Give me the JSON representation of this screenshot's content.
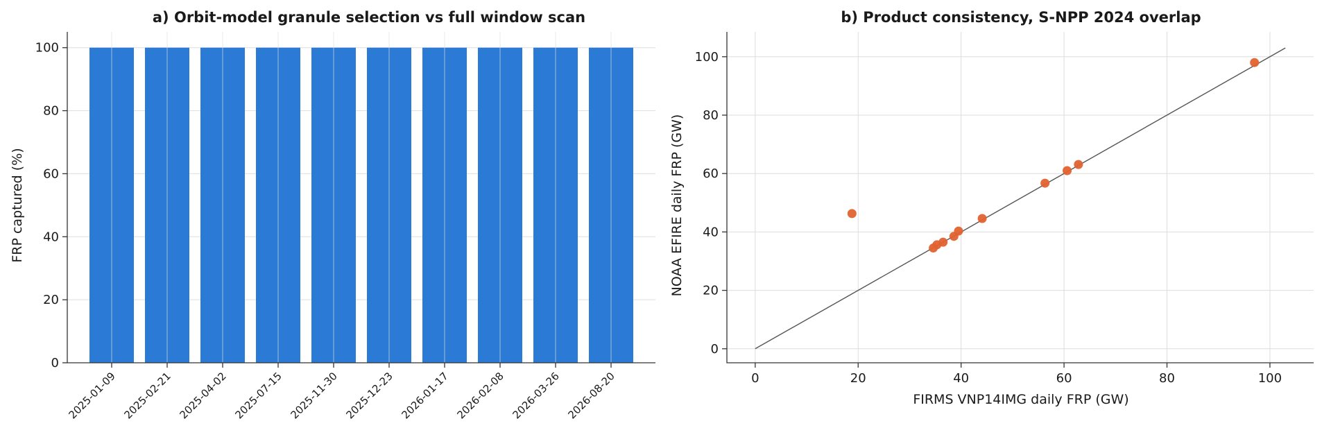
{
  "chart_data": [
    {
      "type": "bar",
      "title": "a) Orbit-model granule selection vs full window scan",
      "xlabel": "",
      "ylabel": "FRP captured (%)",
      "categories": [
        "2025-01-09",
        "2025-02-21",
        "2025-04-02",
        "2025-07-15",
        "2025-11-30",
        "2025-12-23",
        "2026-01-17",
        "2026-02-08",
        "2026-03-26",
        "2026-08-20"
      ],
      "values": [
        100,
        100,
        100,
        100,
        100,
        100,
        100,
        100,
        100,
        100
      ],
      "ylim": [
        0,
        105
      ],
      "yticks": [
        0,
        20,
        40,
        60,
        80,
        100
      ],
      "grid": true,
      "color": "#2b7bd6"
    },
    {
      "type": "scatter",
      "title": "b) Product consistency, S-NPP 2024 overlap",
      "xlabel": "FIRMS VNP14IMG daily FRP (GW)",
      "ylabel": "NOAA EFIRE daily FRP (GW)",
      "points": [
        {
          "x": 18.8,
          "y": 46.3
        },
        {
          "x": 34.6,
          "y": 34.5
        },
        {
          "x": 35.3,
          "y": 35.6
        },
        {
          "x": 36.5,
          "y": 36.5
        },
        {
          "x": 38.6,
          "y": 38.5
        },
        {
          "x": 39.5,
          "y": 40.3
        },
        {
          "x": 44.1,
          "y": 44.6
        },
        {
          "x": 56.3,
          "y": 56.7
        },
        {
          "x": 60.6,
          "y": 61.0
        },
        {
          "x": 62.8,
          "y": 63.1
        },
        {
          "x": 97.0,
          "y": 98.0
        }
      ],
      "reference_line": {
        "from": 0,
        "to": 103
      },
      "xlim": [
        -5.5,
        108.5
      ],
      "ylim": [
        -4.8,
        108.5
      ],
      "xticks": [
        0,
        20,
        40,
        60,
        80,
        100
      ],
      "yticks": [
        0,
        20,
        40,
        60,
        80,
        100
      ],
      "grid": true,
      "color": "#e2622f",
      "line_color": "#555555"
    }
  ]
}
